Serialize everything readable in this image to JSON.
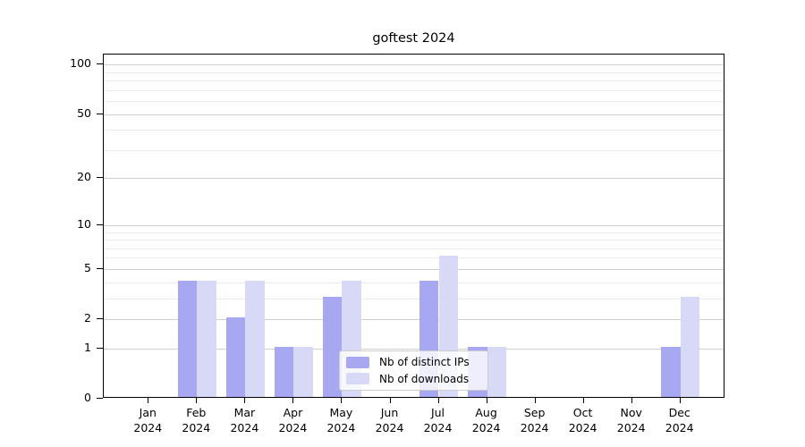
{
  "chart_data": {
    "type": "bar",
    "title": "goftest 2024",
    "categories": [
      "Jan 2024",
      "Feb 2024",
      "Mar 2024",
      "Apr 2024",
      "May 2024",
      "Jun 2024",
      "Jul 2024",
      "Aug 2024",
      "Sep 2024",
      "Oct 2024",
      "Nov 2024",
      "Dec 2024"
    ],
    "series": [
      {
        "name": "Nb of distinct IPs",
        "color": "#a8a8f2",
        "values": [
          0,
          4,
          2,
          1,
          3,
          0,
          4,
          1,
          0,
          0,
          0,
          1
        ]
      },
      {
        "name": "Nb of downloads",
        "color": "#d8d8f7",
        "values": [
          0,
          4,
          4,
          1,
          4,
          0,
          6,
          1,
          0,
          0,
          0,
          3
        ]
      }
    ],
    "xlabel": "",
    "ylabel": "",
    "yscale": "log1p",
    "ylim": [
      0,
      115
    ],
    "yticks": [
      0,
      1,
      2,
      5,
      10,
      20,
      50,
      100
    ],
    "minor_gridlines": [
      3,
      4,
      6,
      7,
      8,
      9,
      30,
      40,
      60,
      70,
      80,
      90
    ],
    "grid": true,
    "legend_position": "lower-center",
    "colors": {
      "major_grid": "#cfcfcf",
      "minor_grid": "#ebebeb",
      "axis": "#000000",
      "background": "#ffffff"
    }
  }
}
